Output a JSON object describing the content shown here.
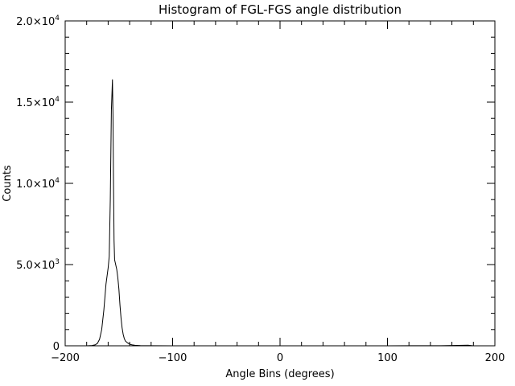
{
  "chart_data": {
    "type": "line",
    "title": "Histogram of FGL-FGS angle distribution",
    "xlabel": "Angle Bins (degrees)",
    "ylabel": "Counts",
    "xlim": [
      -200,
      200
    ],
    "ylim": [
      0,
      20000
    ],
    "x_ticks": [
      {
        "value": -200,
        "label": "−200"
      },
      {
        "value": -100,
        "label": "−100"
      },
      {
        "value": 0,
        "label": "0"
      },
      {
        "value": 100,
        "label": "100"
      },
      {
        "value": 200,
        "label": "200"
      }
    ],
    "y_ticks": [
      {
        "value": 0,
        "mantissa": "0",
        "exponent": ""
      },
      {
        "value": 5000,
        "mantissa": "5.0×10",
        "exponent": "3"
      },
      {
        "value": 10000,
        "mantissa": "1.0×10",
        "exponent": "4"
      },
      {
        "value": 15000,
        "mantissa": "1.5×10",
        "exponent": "4"
      },
      {
        "value": 20000,
        "mantissa": "2.0×10",
        "exponent": "4"
      }
    ],
    "grid": false,
    "series": [
      {
        "color": "#000000",
        "x": [
          -180,
          -175,
          -172,
          -170,
          -168,
          -166,
          -164,
          -162,
          -160,
          -159,
          -158,
          -157,
          -156,
          -155.5,
          -155,
          -154.5,
          -154,
          -153,
          -152,
          -151,
          -150,
          -149,
          -148,
          -147,
          -146,
          -145,
          -144,
          -142,
          -140,
          -138,
          -135,
          -130,
          -125,
          -120,
          -100,
          -50,
          0,
          50,
          100,
          150,
          170,
          175,
          180
        ],
        "y": [
          0,
          20,
          60,
          150,
          400,
          1000,
          2200,
          3800,
          4800,
          5500,
          9000,
          14500,
          16400,
          14200,
          10000,
          6500,
          5300,
          5000,
          4700,
          4200,
          3500,
          2500,
          1700,
          1100,
          700,
          450,
          300,
          180,
          100,
          60,
          30,
          15,
          8,
          4,
          3,
          2,
          2,
          2,
          3,
          4,
          30,
          40,
          0
        ]
      }
    ]
  }
}
